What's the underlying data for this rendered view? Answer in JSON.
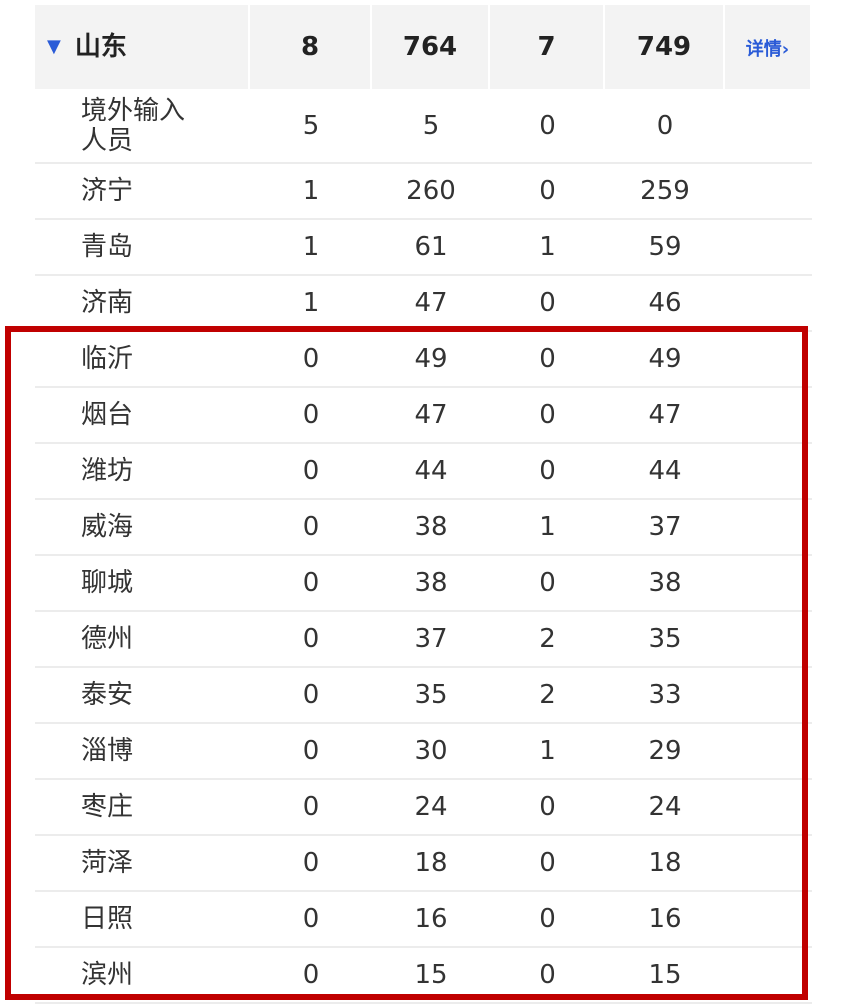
{
  "province": {
    "name": "山东",
    "values": [
      "8",
      "764",
      "7",
      "749"
    ],
    "detail_label": "详情›",
    "expand_icon": "triangle-down-icon"
  },
  "rows": [
    {
      "name": "境外输入人员",
      "values": [
        "5",
        "5",
        "0",
        "0"
      ]
    },
    {
      "name": "济宁",
      "values": [
        "1",
        "260",
        "0",
        "259"
      ]
    },
    {
      "name": "青岛",
      "values": [
        "1",
        "61",
        "1",
        "59"
      ]
    },
    {
      "name": "济南",
      "values": [
        "1",
        "47",
        "0",
        "46"
      ]
    },
    {
      "name": "临沂",
      "values": [
        "0",
        "49",
        "0",
        "49"
      ]
    },
    {
      "name": "烟台",
      "values": [
        "0",
        "47",
        "0",
        "47"
      ]
    },
    {
      "name": "潍坊",
      "values": [
        "0",
        "44",
        "0",
        "44"
      ]
    },
    {
      "name": "威海",
      "values": [
        "0",
        "38",
        "1",
        "37"
      ]
    },
    {
      "name": "聊城",
      "values": [
        "0",
        "38",
        "0",
        "38"
      ]
    },
    {
      "name": "德州",
      "values": [
        "0",
        "37",
        "2",
        "35"
      ]
    },
    {
      "name": "泰安",
      "values": [
        "0",
        "35",
        "2",
        "33"
      ]
    },
    {
      "name": "淄博",
      "values": [
        "0",
        "30",
        "1",
        "29"
      ]
    },
    {
      "name": "枣庄",
      "values": [
        "0",
        "24",
        "0",
        "24"
      ]
    },
    {
      "name": "菏泽",
      "values": [
        "0",
        "18",
        "0",
        "18"
      ]
    },
    {
      "name": "日照",
      "values": [
        "0",
        "16",
        "0",
        "16"
      ]
    },
    {
      "name": "滨州",
      "values": [
        "0",
        "15",
        "0",
        "15"
      ]
    }
  ],
  "colors": {
    "accent": "#2a5bd7",
    "highlight_border": "#c00000",
    "header_bg": "#f3f3f3"
  }
}
